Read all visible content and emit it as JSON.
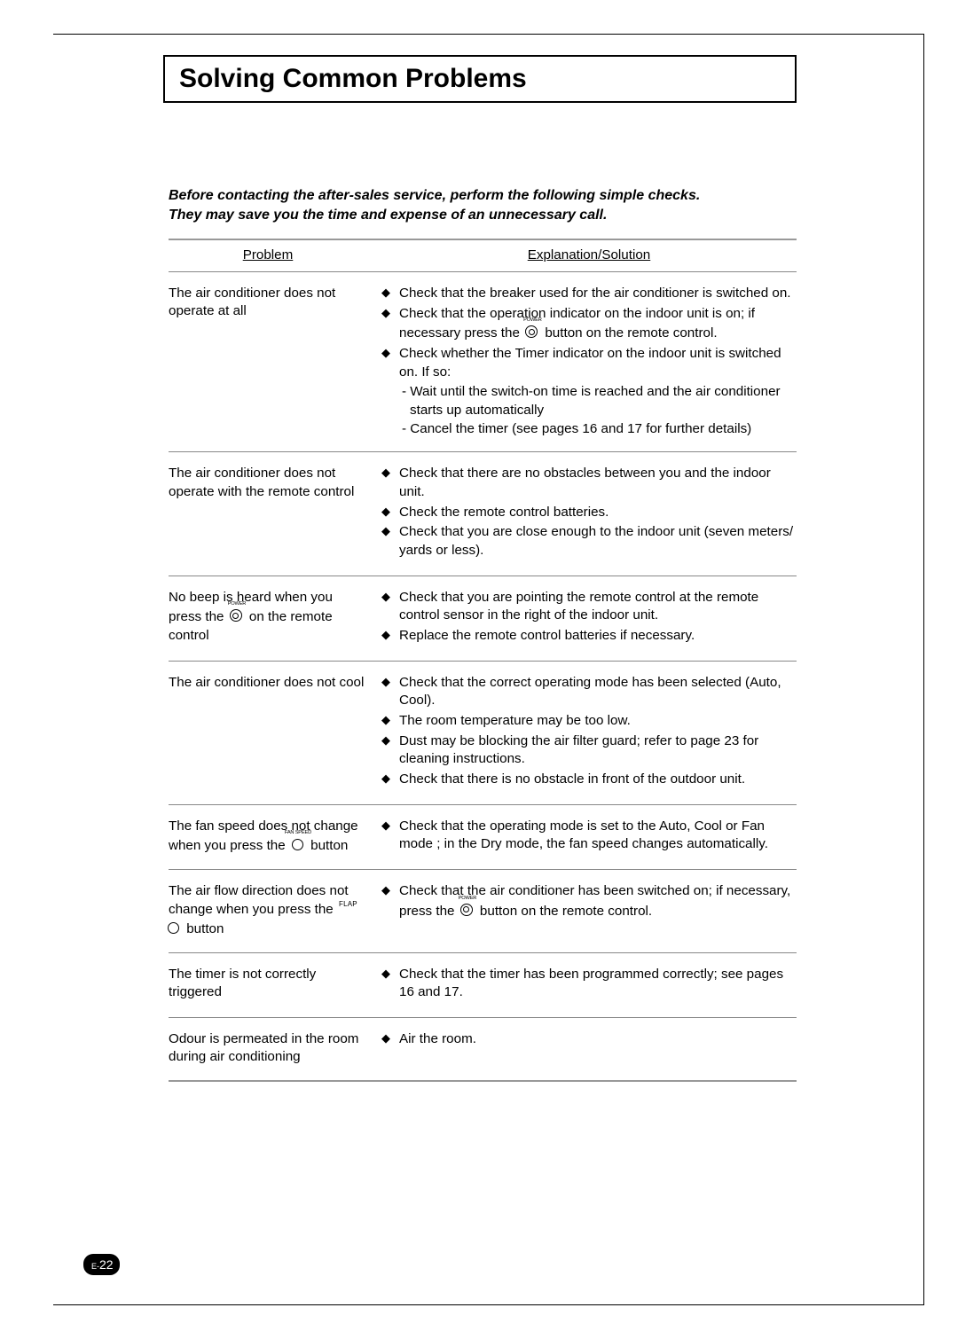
{
  "page": {
    "title": "Solving Common Problems",
    "number_prefix": "E-",
    "number": "22",
    "intro_line1": "Before contacting the after-sales service, perform the following simple checks.",
    "intro_line2": "They may save you the time and expense of an unnecessary call."
  },
  "table": {
    "header_problem": "Problem",
    "header_solution": "Explanation/Solution",
    "rows": [
      {
        "problem": "The air conditioner does not operate at all",
        "bullets": [
          "Check that the breaker used for the air conditioner is switched on.",
          "Check that the operation indicator on the indoor unit is on; if necessary press the {POWER} button on the remote control.",
          "Check whether the Timer indicator on the indoor unit is switched on. If so:"
        ],
        "sublines": [
          "- Wait until the switch-on time is reached and the air conditioner starts up automatically",
          "- Cancel the timer (see pages 16 and 17 for further details)"
        ]
      },
      {
        "problem": "The air conditioner does not operate with the remote control",
        "bullets": [
          "Check that there are no obstacles between you and the indoor unit.",
          "Check the remote control batteries.",
          "Check that you are close enough to the indoor unit (seven meters/ yards or less)."
        ]
      },
      {
        "problem": "No beep is heard when you press the {POWER} on the remote control",
        "bullets": [
          "Check that you are pointing the remote control at the remote control sensor in the right of the indoor unit.",
          "Replace the remote control batteries if necessary."
        ]
      },
      {
        "problem": "The air conditioner does not cool",
        "bullets": [
          "Check that the correct operating mode has been selected (Auto, Cool).",
          "The room temperature may be too low.",
          "Dust may be blocking the air filter guard; refer to page 23 for cleaning instructions.",
          "Check that there is no obstacle in front of the outdoor unit."
        ]
      },
      {
        "problem": "The fan speed does not change when you press the {FANSPEED} button",
        "bullets": [
          "Check that the operating mode is set to the Auto, Cool or Fan mode ; in the Dry mode, the fan speed changes automatically."
        ]
      },
      {
        "problem": "The air flow direction does not change when you press the {FLAP} button",
        "bullets": [
          "Check that the air conditioner has been switched on; if necessary, press the {POWER} button on the remote control."
        ]
      },
      {
        "problem": "The timer is not correctly triggered",
        "bullets": [
          "Check that the timer has been programmed correctly; see pages 16 and 17."
        ]
      },
      {
        "problem": "Odour is permeated in the room during air conditioning",
        "bullets": [
          "Air the room."
        ]
      }
    ]
  },
  "icon_labels": {
    "power": "POWER",
    "fan_speed": "FAN SPEED",
    "flap": "FLAP"
  },
  "style": {
    "colors": {
      "page_background": "#ffffff",
      "text": "#000000",
      "rule_thick": "#999999",
      "rule_thin": "#888888",
      "page_num_bg": "#000000",
      "page_num_fg": "#ffffff"
    },
    "fonts": {
      "base_family": "Arial, Helvetica, sans-serif",
      "title_size_pt": 22,
      "body_size_pt": 11,
      "intro_weight": "bold",
      "intro_style": "italic"
    }
  }
}
